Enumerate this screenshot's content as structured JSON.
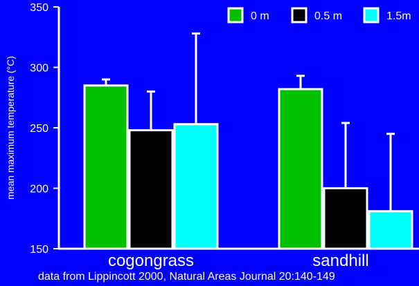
{
  "colors": {
    "background": "#0000ff",
    "axis": "#ffffff",
    "bar_outline": "#ffffff"
  },
  "caption": "data from Lippincott 2000, Natural Areas Journal 20:140-149",
  "chart_data": {
    "type": "bar",
    "title": "",
    "ylabel": "mean maximum temperature (°C)",
    "xlabel": "",
    "ylim": [
      150,
      350
    ],
    "yticks": [
      "150",
      "200",
      "250",
      "300",
      "350"
    ],
    "categories": [
      "cogongrass",
      "sandhill"
    ],
    "series": [
      {
        "name": "0 m",
        "color": "#00c000",
        "values": [
          285,
          282
        ],
        "error": [
          5,
          11
        ]
      },
      {
        "name": "0.5 m",
        "color": "#000000",
        "values": [
          248,
          200
        ],
        "error": [
          32,
          54
        ]
      },
      {
        "name": "1.5m",
        "color": "#00ffff",
        "values": [
          253,
          181
        ],
        "error": [
          75,
          64
        ]
      }
    ],
    "legend_position": "top-right",
    "grid": false
  }
}
